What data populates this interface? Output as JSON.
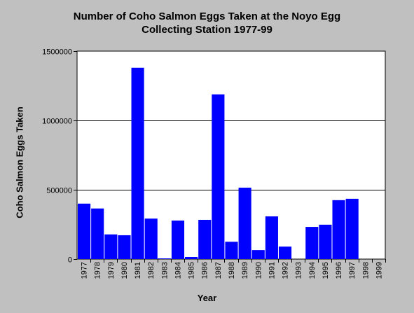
{
  "chart_data": {
    "type": "bar",
    "title_lines": [
      "Number of Coho Salmon Eggs Taken at the Noyo Egg",
      "Collecting Station 1977-99"
    ],
    "xlabel": "Year",
    "ylabel": "Coho Salmon Eggs Taken",
    "ylim": [
      0,
      1500000
    ],
    "yticks": [
      0,
      500000,
      1000000,
      1500000
    ],
    "ytick_labels": [
      "0",
      "500000",
      "1000000",
      "1500000"
    ],
    "grid": true,
    "bar_color": "#0000ff",
    "categories": [
      "1977",
      "1978",
      "1979",
      "1980",
      "1981",
      "1982",
      "1983",
      "1984",
      "1985",
      "1986",
      "1987",
      "1988",
      "1989",
      "1990",
      "1991",
      "1992",
      "1993",
      "1994",
      "1995",
      "1996",
      "1997",
      "1998",
      "1999"
    ],
    "values": [
      400000,
      365000,
      178000,
      172000,
      1380000,
      292000,
      5000,
      278000,
      15000,
      283000,
      1188000,
      125000,
      515000,
      65000,
      308000,
      90000,
      0,
      232000,
      248000,
      425000,
      435000,
      0,
      0
    ]
  }
}
